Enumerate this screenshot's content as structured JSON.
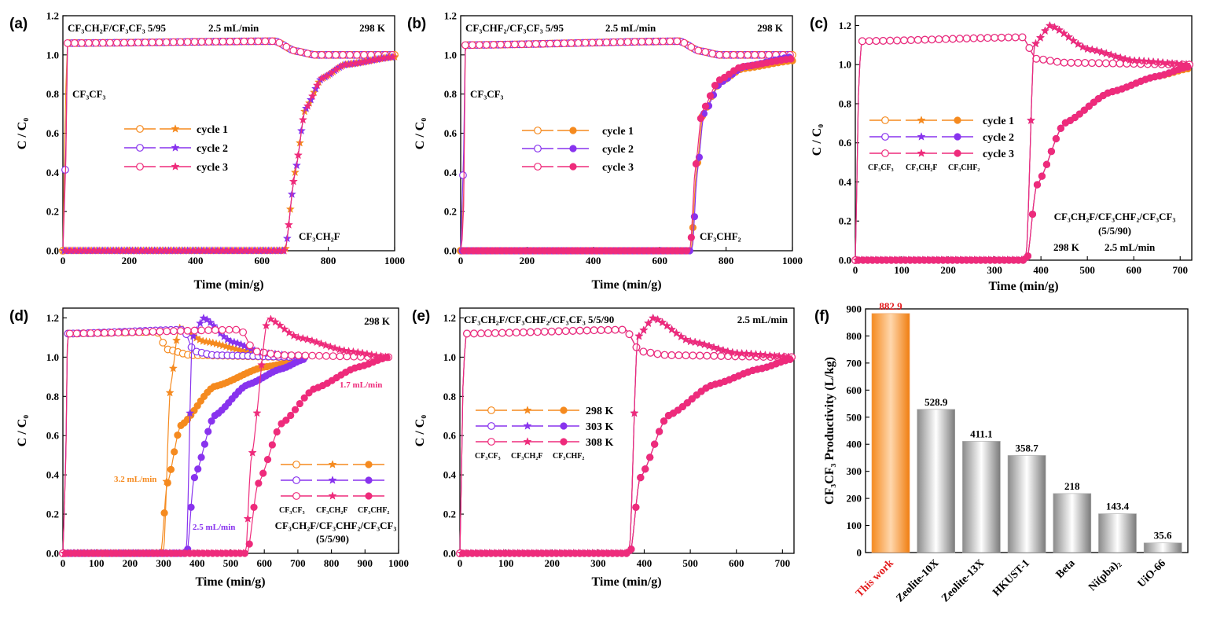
{
  "figure": {
    "colors": {
      "orange": "#f58a1f",
      "purple": "#8833ee",
      "pink": "#ee2b7b",
      "highlight": "#e31a1c",
      "bar": "#9c9c9c"
    }
  },
  "chart_data": [
    {
      "panel": "(a)",
      "type": "line",
      "xlabel": "Time (min/g)",
      "ylabel": "C / C₀",
      "xlim": [
        0,
        1000
      ],
      "ylim": [
        0,
        1.2
      ],
      "xticks": [
        "0",
        "200",
        "400",
        "600",
        "800",
        "1000"
      ],
      "yticks": [
        "0.0",
        "0.2",
        "0.4",
        "0.6",
        "0.8",
        "1.0",
        "1.2"
      ],
      "annotations": [
        "CF₃CH₂F/CF₃CF₃ 5/95",
        "2.5 mL/min",
        "298 K",
        "CF₃CF₃",
        "CF₃CH₂F"
      ],
      "legend": [
        "cycle 1",
        "cycle 2",
        "cycle 3"
      ],
      "series": [
        {
          "name": "cycle 1",
          "x": [
            0,
            8,
            14,
            640,
            700,
            760,
            1000
          ],
          "y": [
            0,
            0.8,
            1.06,
            1.07,
            1.02,
            1.0,
            1.0
          ]
        },
        {
          "name": "cycle 2",
          "x": [
            0,
            8,
            14,
            640,
            700,
            760,
            1000
          ],
          "y": [
            0,
            0.45,
            1.06,
            1.07,
            1.02,
            1.0,
            1.0
          ]
        },
        {
          "name": "cycle 3",
          "x": [
            0,
            8,
            14,
            640,
            700,
            760,
            1000
          ],
          "y": [
            0,
            0.38,
            1.06,
            1.07,
            1.02,
            1.0,
            1.0
          ]
        },
        {
          "name": "cycle 1",
          "x": [
            0,
            670,
            700,
            730,
            780,
            850,
            1000
          ],
          "y": [
            0,
            0.0,
            0.4,
            0.72,
            0.88,
            0.95,
            0.99
          ]
        },
        {
          "name": "cycle 2",
          "x": [
            0,
            670,
            700,
            730,
            780,
            850,
            1000
          ],
          "y": [
            0,
            0.0,
            0.4,
            0.72,
            0.88,
            0.95,
            0.99
          ]
        },
        {
          "name": "cycle 3",
          "x": [
            0,
            670,
            700,
            730,
            780,
            850,
            1000
          ],
          "y": [
            0,
            0.0,
            0.4,
            0.72,
            0.88,
            0.95,
            0.99
          ]
        }
      ]
    },
    {
      "panel": "(b)",
      "type": "line",
      "xlabel": "Time (min/g)",
      "ylabel": "C / C₀",
      "xlim": [
        0,
        1000
      ],
      "ylim": [
        0,
        1.2
      ],
      "xticks": [
        "0",
        "200",
        "400",
        "600",
        "800",
        "1000"
      ],
      "yticks": [
        "0.0",
        "0.2",
        "0.4",
        "0.6",
        "0.8",
        "1.0",
        "1.2"
      ],
      "annotations": [
        "CF₃CHF₂/CF₃CF₃ 5/95",
        "2.5 mL/min",
        "298 K",
        "CF₃CF₃",
        "CF₃CHF₂"
      ],
      "legend": [
        "cycle 1",
        "cycle 2",
        "cycle 3"
      ],
      "series": [
        {
          "name": "cycle 1",
          "x": [
            0,
            8,
            14,
            660,
            720,
            780,
            1000
          ],
          "y": [
            0,
            0.17,
            1.05,
            1.07,
            1.02,
            1.0,
            1.0
          ]
        },
        {
          "name": "cycle 2",
          "x": [
            0,
            8,
            14,
            660,
            720,
            780,
            1000
          ],
          "y": [
            0,
            0.42,
            1.05,
            1.07,
            1.02,
            1.0,
            1.0
          ]
        },
        {
          "name": "cycle 3",
          "x": [
            0,
            8,
            14,
            660,
            720,
            780,
            1000
          ],
          "y": [
            0,
            0.1,
            1.05,
            1.07,
            1.02,
            1.0,
            1.0
          ]
        },
        {
          "name": "cycle 1",
          "x": [
            0,
            695,
            710,
            730,
            780,
            850,
            1000
          ],
          "y": [
            0,
            0.0,
            0.4,
            0.7,
            0.86,
            0.93,
            0.97
          ]
        },
        {
          "name": "cycle 2",
          "x": [
            0,
            698,
            713,
            733,
            783,
            853,
            1000
          ],
          "y": [
            0,
            0.0,
            0.4,
            0.7,
            0.86,
            0.94,
            0.99
          ]
        },
        {
          "name": "cycle 3",
          "x": [
            0,
            692,
            707,
            727,
            777,
            847,
            1000
          ],
          "y": [
            0,
            0.0,
            0.42,
            0.71,
            0.87,
            0.94,
            0.98
          ]
        }
      ]
    },
    {
      "panel": "(c)",
      "type": "line",
      "xlabel": "Time (min/g)",
      "ylabel": "C / C₀",
      "xlim": [
        0,
        725
      ],
      "ylim": [
        0,
        1.25
      ],
      "xticks": [
        "0",
        "100",
        "200",
        "300",
        "400",
        "500",
        "600",
        "700"
      ],
      "yticks": [
        "0.0",
        "0.2",
        "0.4",
        "0.6",
        "0.8",
        "1.0",
        "1.2"
      ],
      "annotations": [
        "CF₃CH₂F/CF₃CHF₂/CF₃CF₃",
        "(5/5/90)",
        "298 K",
        "2.5 mL/min"
      ],
      "legend": [
        "cycle 1",
        "cycle 2",
        "cycle 3"
      ],
      "legend_species": [
        "CF₃CF₃",
        "CF₃CH₂F",
        "CF₃CHF₂"
      ],
      "series": [
        {
          "name": "cycle 1",
          "x": [
            0,
            8,
            14,
            360,
            390,
            450,
            720
          ],
          "y": [
            0,
            0.97,
            1.12,
            1.14,
            1.03,
            1.01,
            1.0
          ]
        },
        {
          "name": "cycle 1",
          "x": [
            0,
            368,
            385,
            420,
            500,
            600,
            720
          ],
          "y": [
            0,
            0.0,
            1.1,
            1.2,
            1.08,
            1.02,
            1.0
          ]
        },
        {
          "name": "cycle 1",
          "x": [
            0,
            370,
            390,
            450,
            550,
            650,
            720
          ],
          "y": [
            0,
            0.0,
            0.38,
            0.7,
            0.86,
            0.94,
            0.98
          ]
        },
        {
          "name": "cycle 2",
          "x": [
            0,
            8,
            14,
            360,
            390,
            450,
            720
          ],
          "y": [
            0,
            0.97,
            1.12,
            1.14,
            1.03,
            1.01,
            1.0
          ]
        },
        {
          "name": "cycle 2",
          "x": [
            0,
            368,
            385,
            420,
            500,
            600,
            720
          ],
          "y": [
            0,
            0.0,
            1.1,
            1.2,
            1.08,
            1.02,
            1.0
          ]
        },
        {
          "name": "cycle 2",
          "x": [
            0,
            370,
            390,
            450,
            550,
            650,
            720
          ],
          "y": [
            0,
            0.0,
            0.38,
            0.7,
            0.86,
            0.94,
            0.99
          ]
        },
        {
          "name": "cycle 3",
          "x": [
            0,
            8,
            14,
            360,
            390,
            450,
            720
          ],
          "y": [
            0,
            0.97,
            1.12,
            1.14,
            1.03,
            1.01,
            1.0
          ]
        },
        {
          "name": "cycle 3",
          "x": [
            0,
            368,
            385,
            420,
            500,
            600,
            720
          ],
          "y": [
            0,
            0.0,
            1.1,
            1.2,
            1.08,
            1.02,
            1.0
          ]
        },
        {
          "name": "cycle 3",
          "x": [
            0,
            370,
            390,
            450,
            550,
            650,
            720
          ],
          "y": [
            0,
            0.0,
            0.38,
            0.7,
            0.86,
            0.94,
            0.99
          ]
        }
      ]
    },
    {
      "panel": "(d)",
      "type": "line",
      "xlabel": "Time (min/g)",
      "ylabel": "C / C₀",
      "xlim": [
        0,
        1000
      ],
      "ylim": [
        0,
        1.25
      ],
      "xticks": [
        "0",
        "100",
        "200",
        "300",
        "400",
        "500",
        "600",
        "700",
        "800",
        "900",
        "1000"
      ],
      "yticks": [
        "0.0",
        "0.2",
        "0.4",
        "0.6",
        "0.8",
        "1.0",
        "1.2"
      ],
      "annotations": [
        "298 K",
        "3.2 mL/min",
        "2.5 mL/min",
        "1.7 mL/min",
        "CF₃CH₂F/CF₃CHF₂/CF₃CF₃",
        "(5/5/90)"
      ],
      "legend_species": [
        "CF₃CF₃",
        "CF₃CH₂F",
        "CF₃CHF₂"
      ],
      "series": [
        {
          "name": "3.2 mL/min",
          "x": [
            0,
            8,
            14,
            280,
            310,
            380,
            700
          ],
          "y": [
            0,
            0.43,
            1.12,
            1.13,
            1.04,
            1.01,
            1.0
          ]
        },
        {
          "name": "3.2 mL/min",
          "x": [
            0,
            300,
            320,
            345,
            420,
            550,
            700
          ],
          "y": [
            0,
            0.0,
            0.85,
            1.15,
            1.08,
            1.03,
            1.0
          ]
        },
        {
          "name": "3.2 mL/min",
          "x": [
            0,
            292,
            310,
            350,
            450,
            600,
            700
          ],
          "y": [
            0,
            0.0,
            0.35,
            0.65,
            0.85,
            0.95,
            0.98
          ]
        },
        {
          "name": "2.5 mL/min",
          "x": [
            0,
            8,
            14,
            360,
            390,
            450,
            720
          ],
          "y": [
            0,
            0.43,
            1.12,
            1.14,
            1.03,
            1.01,
            1.0
          ]
        },
        {
          "name": "2.5 mL/min",
          "x": [
            0,
            368,
            385,
            420,
            500,
            600,
            720
          ],
          "y": [
            0,
            0.0,
            1.1,
            1.2,
            1.08,
            1.02,
            1.0
          ]
        },
        {
          "name": "2.5 mL/min",
          "x": [
            0,
            370,
            390,
            450,
            550,
            650,
            720
          ],
          "y": [
            0,
            0.0,
            0.38,
            0.7,
            0.86,
            0.94,
            0.99
          ]
        },
        {
          "name": "1.7 mL/min",
          "x": [
            0,
            8,
            14,
            530,
            570,
            650,
            970
          ],
          "y": [
            0,
            0.43,
            1.12,
            1.14,
            1.03,
            1.01,
            1.0
          ]
        },
        {
          "name": "1.7 mL/min",
          "x": [
            0,
            545,
            560,
            610,
            700,
            850,
            970
          ],
          "y": [
            0,
            0.0,
            0.47,
            1.2,
            1.1,
            1.03,
            1.0
          ]
        },
        {
          "name": "1.7 mL/min",
          "x": [
            0,
            550,
            580,
            650,
            750,
            880,
            970
          ],
          "y": [
            0,
            0.0,
            0.35,
            0.66,
            0.84,
            0.95,
            1.0
          ]
        }
      ]
    },
    {
      "panel": "(e)",
      "type": "line",
      "xlabel": "Time (min/g)",
      "ylabel": "C / C₀",
      "xlim": [
        0,
        725
      ],
      "ylim": [
        0,
        1.25
      ],
      "xticks": [
        "0",
        "100",
        "200",
        "300",
        "400",
        "500",
        "600",
        "700"
      ],
      "yticks": [
        "0.0",
        "0.2",
        "0.4",
        "0.6",
        "0.8",
        "1.0",
        "1.2"
      ],
      "annotations": [
        "CF₃CH₂F/CF₃CHF₂/CF₃CF₃ 5/5/90",
        "2.5 mL/min"
      ],
      "legend": [
        "298 K",
        "303 K",
        "308 K"
      ],
      "legend_species": [
        "CF₃CF₃",
        "CF₃CH₂F",
        "CF₃CHF₂"
      ],
      "series": [
        {
          "name": "298 K",
          "x": [
            0,
            8,
            14,
            360,
            390,
            450,
            720
          ],
          "y": [
            0,
            0.97,
            1.12,
            1.14,
            1.03,
            1.01,
            1.0
          ]
        },
        {
          "name": "298 K",
          "x": [
            0,
            368,
            385,
            420,
            500,
            600,
            720
          ],
          "y": [
            0,
            0.0,
            1.1,
            1.2,
            1.08,
            1.02,
            1.0
          ]
        },
        {
          "name": "298 K",
          "x": [
            0,
            370,
            390,
            450,
            550,
            650,
            720
          ],
          "y": [
            0,
            0.0,
            0.38,
            0.7,
            0.86,
            0.94,
            0.99
          ]
        },
        {
          "name": "303 K",
          "x": [
            0,
            8,
            14,
            360,
            390,
            450,
            720
          ],
          "y": [
            0,
            0.97,
            1.12,
            1.14,
            1.03,
            1.01,
            1.0
          ]
        },
        {
          "name": "303 K",
          "x": [
            0,
            368,
            385,
            420,
            500,
            600,
            720
          ],
          "y": [
            0,
            0.0,
            1.1,
            1.2,
            1.08,
            1.02,
            1.0
          ]
        },
        {
          "name": "303 K",
          "x": [
            0,
            370,
            390,
            450,
            550,
            650,
            720
          ],
          "y": [
            0,
            0.0,
            0.38,
            0.7,
            0.86,
            0.94,
            0.99
          ]
        },
        {
          "name": "308 K",
          "x": [
            0,
            8,
            14,
            360,
            390,
            450,
            720
          ],
          "y": [
            0,
            0.97,
            1.12,
            1.14,
            1.03,
            1.01,
            1.0
          ]
        },
        {
          "name": "308 K",
          "x": [
            0,
            368,
            385,
            420,
            500,
            600,
            720
          ],
          "y": [
            0,
            0.0,
            1.1,
            1.2,
            1.08,
            1.02,
            1.0
          ]
        },
        {
          "name": "308 K",
          "x": [
            0,
            370,
            390,
            450,
            550,
            650,
            720
          ],
          "y": [
            0,
            0.0,
            0.38,
            0.7,
            0.86,
            0.94,
            0.99
          ]
        }
      ]
    },
    {
      "panel": "(f)",
      "type": "bar",
      "ylabel": "CF₃CF₃ Productivity (L/kg)",
      "ylim": [
        0,
        900
      ],
      "yticks": [
        "0",
        "100",
        "200",
        "300",
        "400",
        "500",
        "600",
        "700",
        "800",
        "900"
      ],
      "categories": [
        "This work",
        "Zeolite-10X",
        "Zeolite-13X",
        "HKUST-1",
        "Beta",
        "Ni(pba)₂",
        "UiO-66"
      ],
      "values": [
        882.9,
        528.9,
        411.1,
        358.7,
        218,
        143.4,
        35.6
      ],
      "value_labels": [
        "882.9",
        "528.9",
        "411.1",
        "358.7",
        "218",
        "143.4",
        "35.6"
      ]
    }
  ]
}
